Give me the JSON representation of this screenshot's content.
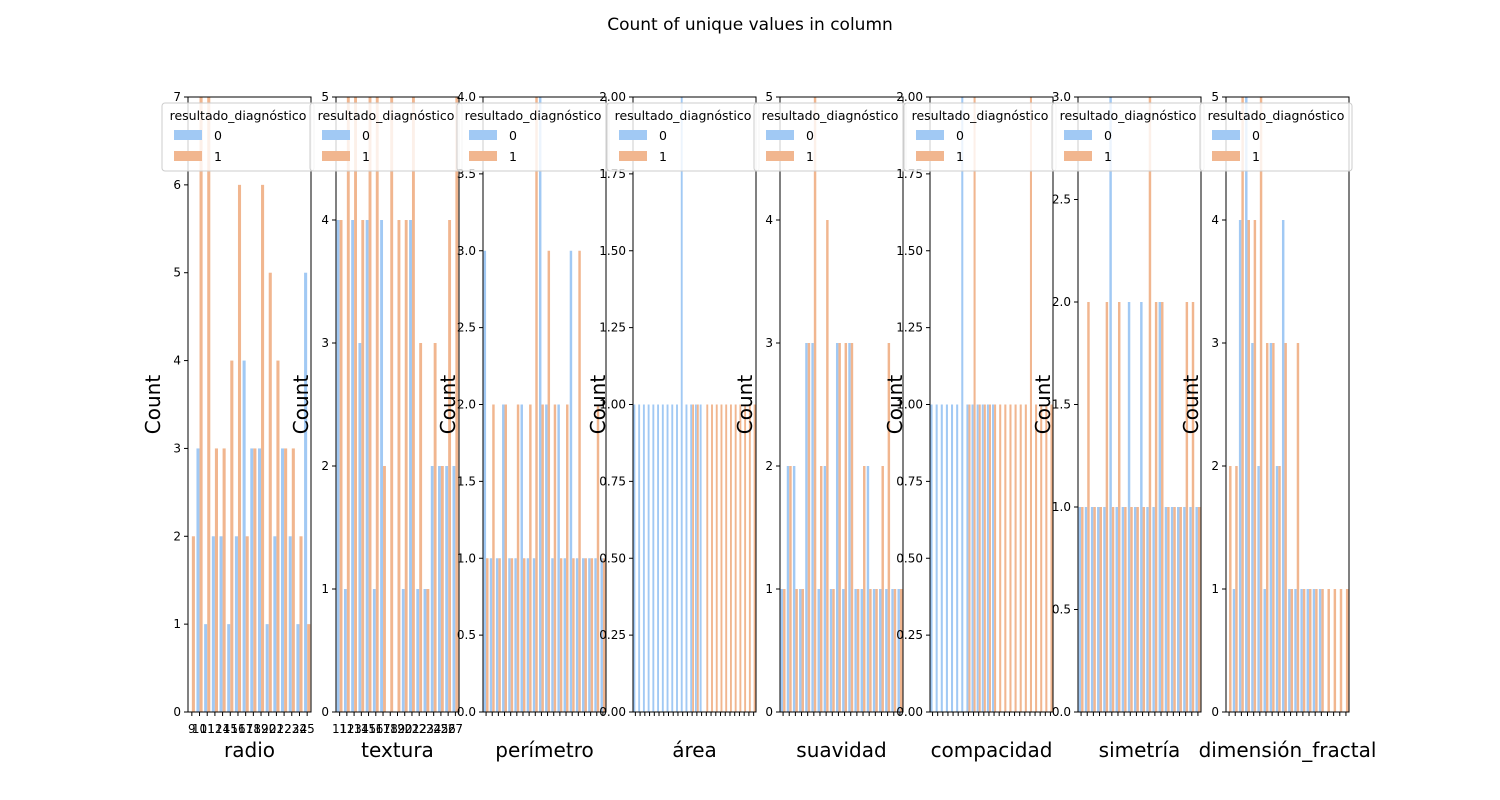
{
  "figure": {
    "suptitle": "Count of unique values in column",
    "legend_title": "resultado_diagnóstico",
    "legend_labels": [
      "0",
      "1"
    ],
    "series_colors": {
      "0": "#a1c9f4",
      "1": "#f1b68f"
    },
    "ylabel": "Count"
  },
  "chart_data": [
    {
      "type": "bar",
      "xlabel": "radio",
      "ylabel": "Count",
      "ylim": [
        0,
        7
      ],
      "yticks": [
        0,
        1,
        2,
        3,
        4,
        5,
        6,
        7
      ],
      "xticks": [
        "9",
        "10",
        "11",
        "12",
        "14",
        "15",
        "16",
        "17",
        "18",
        "19",
        "20",
        "21",
        "22",
        "23",
        "24",
        "25"
      ],
      "grid": false,
      "legend_placement": "upper-right",
      "series": [
        {
          "name": "0",
          "values": [
            0,
            3,
            1,
            2,
            2,
            1,
            2,
            4,
            3,
            3,
            1,
            2,
            3,
            2,
            1,
            5
          ]
        },
        {
          "name": "1",
          "values": [
            2,
            7,
            7,
            3,
            3,
            4,
            6,
            2,
            3,
            6,
            5,
            4,
            3,
            3,
            2,
            1
          ]
        }
      ]
    },
    {
      "type": "bar",
      "xlabel": "textura",
      "ylabel": "Count",
      "ylim": [
        0,
        5
      ],
      "yticks": [
        0,
        1,
        2,
        3,
        4,
        5
      ],
      "xticks": [
        "11",
        "12",
        "13",
        "14",
        "15",
        "16",
        "17",
        "18",
        "19",
        "20",
        "21",
        "22",
        "23",
        "24",
        "25",
        "26",
        "27"
      ],
      "grid": false,
      "legend_placement": "upper-right",
      "series": [
        {
          "name": "0",
          "values": [
            4,
            1,
            4,
            3,
            4,
            1,
            4,
            0,
            0,
            1,
            4,
            1,
            1,
            2,
            2,
            2,
            2
          ]
        },
        {
          "name": "1",
          "values": [
            4,
            5,
            5,
            4,
            5,
            5,
            2,
            5,
            4,
            4,
            5,
            3,
            1,
            3,
            2,
            4,
            5
          ]
        }
      ]
    },
    {
      "type": "bar",
      "xlabel": "perímetro",
      "ylabel": "Count",
      "ylim": [
        0,
        4
      ],
      "yticks": [
        0,
        0.5,
        1,
        1.5,
        2,
        2.5,
        3,
        3.5,
        4
      ],
      "grid": false,
      "legend_placement": "upper-right",
      "series": [
        {
          "name": "0",
          "values": [
            3,
            1,
            1,
            2,
            1,
            1,
            2,
            1,
            1,
            4,
            2,
            1,
            2,
            1,
            3,
            1,
            1,
            1,
            1,
            1
          ]
        },
        {
          "name": "1",
          "values": [
            1,
            2,
            1,
            2,
            1,
            2,
            1,
            2,
            4,
            2,
            3,
            2,
            1,
            2,
            1,
            3,
            1,
            1,
            2,
            1
          ]
        }
      ]
    },
    {
      "type": "bar",
      "xlabel": "área",
      "ylabel": "Count",
      "ylim": [
        0,
        2
      ],
      "yticks": [
        0,
        0.25,
        0.5,
        0.75,
        1,
        1.25,
        1.5,
        1.75,
        2
      ],
      "grid": false,
      "legend_placement": "upper-right",
      "series": [
        {
          "name": "0",
          "values": [
            1,
            1,
            1,
            1,
            1,
            1,
            1,
            1,
            1,
            1,
            2,
            1,
            1,
            1,
            1,
            0,
            0,
            0,
            0,
            0,
            0,
            0,
            0,
            0,
            0,
            0
          ]
        },
        {
          "name": "1",
          "values": [
            0,
            0,
            0,
            0,
            0,
            0,
            0,
            0,
            0,
            0,
            0,
            0,
            1,
            1,
            0,
            1,
            1,
            1,
            1,
            1,
            1,
            1,
            1,
            1,
            1,
            1
          ]
        }
      ]
    },
    {
      "type": "bar",
      "xlabel": "suavidad",
      "ylabel": "Count",
      "ylim": [
        0,
        5
      ],
      "yticks": [
        0,
        1,
        2,
        3,
        4,
        5
      ],
      "grid": false,
      "legend_placement": "upper-right",
      "series": [
        {
          "name": "0",
          "values": [
            1,
            2,
            2,
            1,
            3,
            3,
            1,
            2,
            1,
            3,
            1,
            3,
            1,
            1,
            2,
            1,
            1,
            1,
            1,
            1
          ]
        },
        {
          "name": "1",
          "values": [
            1,
            2,
            1,
            1,
            3,
            5,
            2,
            4,
            1,
            3,
            3,
            3,
            1,
            2,
            1,
            1,
            2,
            3,
            1,
            1
          ]
        }
      ]
    },
    {
      "type": "bar",
      "xlabel": "compacidad",
      "ylabel": "Count",
      "ylim": [
        0,
        2
      ],
      "yticks": [
        0,
        0.25,
        0.5,
        0.75,
        1,
        1.25,
        1.5,
        1.75,
        2
      ],
      "grid": false,
      "legend_placement": "upper-right",
      "series": [
        {
          "name": "0",
          "values": [
            1,
            1,
            1,
            1,
            1,
            1,
            2,
            1,
            1,
            1,
            1,
            1,
            1,
            0,
            0,
            0,
            0,
            0,
            0,
            0,
            0,
            0,
            0,
            0
          ]
        },
        {
          "name": "1",
          "values": [
            0,
            0,
            0,
            0,
            0,
            0,
            0,
            1,
            2,
            1,
            1,
            1,
            1,
            1,
            1,
            1,
            1,
            1,
            1,
            2,
            1,
            1,
            1,
            1
          ]
        }
      ]
    },
    {
      "type": "bar",
      "xlabel": "simetría",
      "ylabel": "Count",
      "ylim": [
        0,
        3
      ],
      "yticks": [
        0,
        0.5,
        1,
        1.5,
        2,
        2.5,
        3
      ],
      "grid": false,
      "legend_placement": "upper-right",
      "series": [
        {
          "name": "0",
          "values": [
            1,
            1,
            1,
            1,
            1,
            3,
            1,
            1,
            2,
            1,
            2,
            1,
            1,
            2,
            1,
            1,
            1,
            1,
            1,
            1
          ]
        },
        {
          "name": "1",
          "values": [
            1,
            2,
            1,
            1,
            2,
            1,
            2,
            1,
            1,
            1,
            1,
            3,
            2,
            2,
            1,
            1,
            1,
            2,
            2,
            1
          ]
        }
      ]
    },
    {
      "type": "bar",
      "xlabel": "dimensión_fractal",
      "ylabel": "Count",
      "ylim": [
        0,
        5
      ],
      "yticks": [
        0,
        1,
        2,
        3,
        4,
        5
      ],
      "grid": false,
      "legend_placement": "upper-right",
      "series": [
        {
          "name": "0",
          "values": [
            0,
            1,
            4,
            5,
            3,
            2,
            1,
            3,
            2,
            4,
            1,
            1,
            1,
            1,
            1,
            1,
            0,
            0,
            0,
            0
          ]
        },
        {
          "name": "1",
          "values": [
            2,
            2,
            5,
            4,
            4,
            5,
            3,
            3,
            2,
            3,
            1,
            3,
            1,
            1,
            1,
            1,
            1,
            1,
            1,
            1
          ]
        }
      ]
    }
  ]
}
